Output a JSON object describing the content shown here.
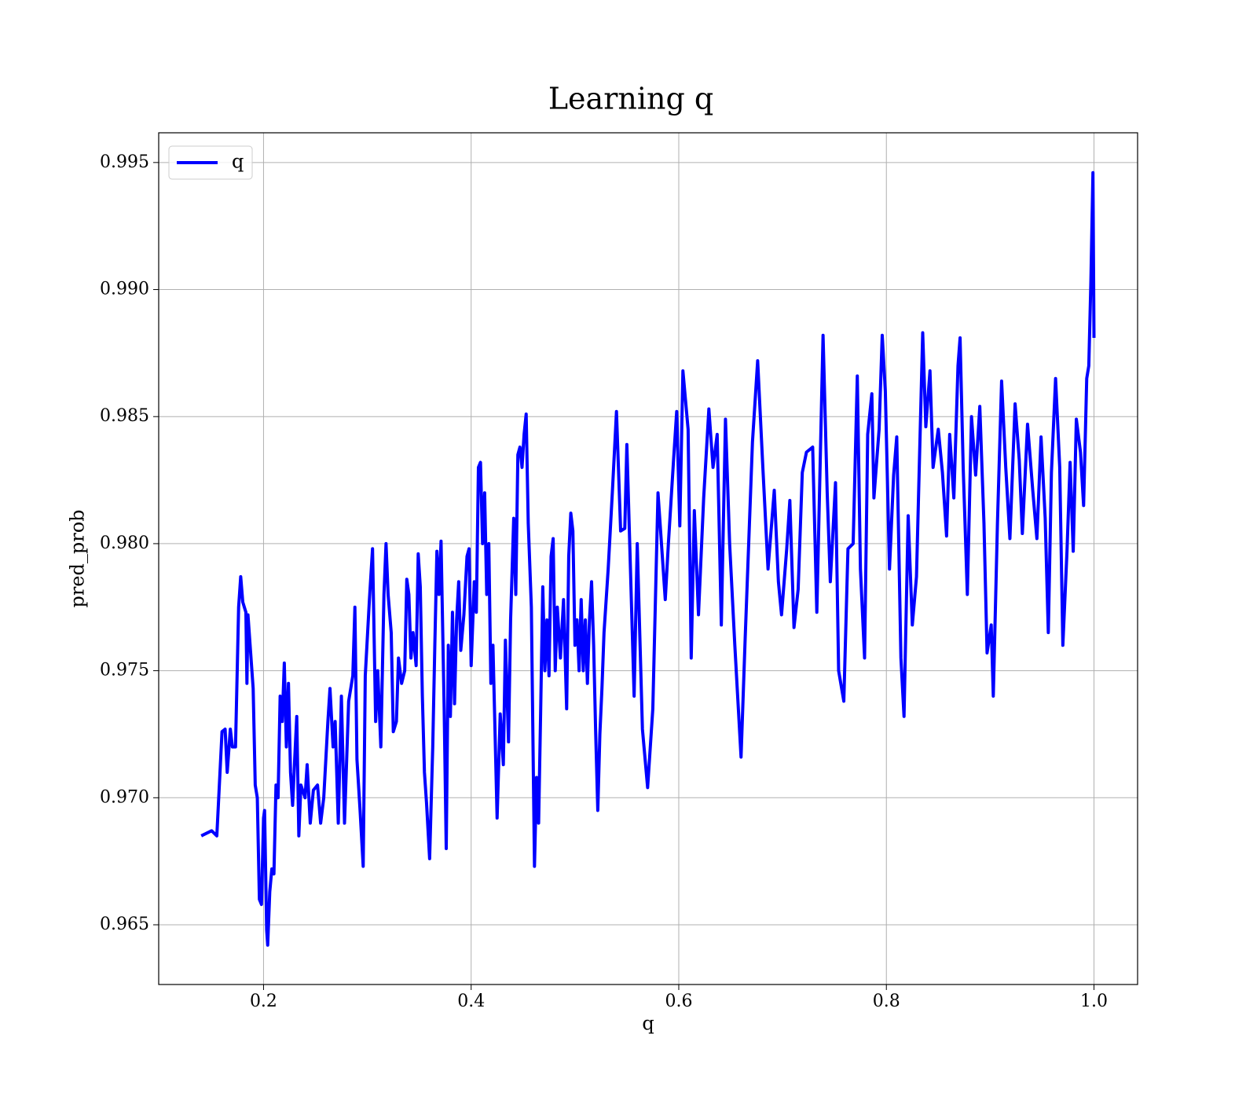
{
  "chart_data": {
    "type": "line",
    "title": "Learning q",
    "xlabel": "q",
    "ylabel": "pred_prob",
    "x": [
      0.14,
      0.15,
      0.155,
      0.16,
      0.163,
      0.165,
      0.168,
      0.17,
      0.173,
      0.176,
      0.178,
      0.18,
      0.183,
      0.184,
      0.185,
      0.19,
      0.192,
      0.194,
      0.196,
      0.198,
      0.2,
      0.201,
      0.203,
      0.204,
      0.206,
      0.208,
      0.21,
      0.212,
      0.214,
      0.216,
      0.218,
      0.22,
      0.222,
      0.224,
      0.226,
      0.228,
      0.23,
      0.232,
      0.234,
      0.236,
      0.24,
      0.242,
      0.245,
      0.248,
      0.252,
      0.255,
      0.258,
      0.262,
      0.264,
      0.267,
      0.269,
      0.272,
      0.275,
      0.278,
      0.282,
      0.286,
      0.288,
      0.29,
      0.293,
      0.296,
      0.298,
      0.302,
      0.305,
      0.308,
      0.31,
      0.313,
      0.316,
      0.318,
      0.32,
      0.323,
      0.325,
      0.328,
      0.33,
      0.333,
      0.336,
      0.338,
      0.34,
      0.342,
      0.344,
      0.347,
      0.349,
      0.351,
      0.353,
      0.355,
      0.357,
      0.36,
      0.363,
      0.365,
      0.367,
      0.369,
      0.371,
      0.374,
      0.376,
      0.378,
      0.38,
      0.382,
      0.384,
      0.386,
      0.388,
      0.39,
      0.393,
      0.396,
      0.398,
      0.4,
      0.403,
      0.405,
      0.407,
      0.409,
      0.411,
      0.413,
      0.415,
      0.417,
      0.419,
      0.421,
      0.425,
      0.428,
      0.431,
      0.433,
      0.436,
      0.438,
      0.441,
      0.443,
      0.445,
      0.447,
      0.449,
      0.451,
      0.453,
      0.455,
      0.458,
      0.461,
      0.463,
      0.465,
      0.467,
      0.469,
      0.471,
      0.473,
      0.475,
      0.477,
      0.479,
      0.481,
      0.483,
      0.486,
      0.489,
      0.492,
      0.494,
      0.496,
      0.498,
      0.5,
      0.502,
      0.504,
      0.506,
      0.508,
      0.51,
      0.512,
      0.514,
      0.516,
      0.518,
      0.52,
      0.522,
      0.524,
      0.526,
      0.528,
      0.532,
      0.536,
      0.54,
      0.544,
      0.548,
      0.55,
      0.557,
      0.56,
      0.565,
      0.57,
      0.575,
      0.58,
      0.587,
      0.59,
      0.595,
      0.598,
      0.601,
      0.604,
      0.609,
      0.612,
      0.615,
      0.619,
      0.624,
      0.629,
      0.633,
      0.637,
      0.641,
      0.645,
      0.649,
      0.654,
      0.66,
      0.664,
      0.671,
      0.676,
      0.681,
      0.686,
      0.692,
      0.696,
      0.699,
      0.704,
      0.707,
      0.711,
      0.715,
      0.719,
      0.723,
      0.729,
      0.733,
      0.739,
      0.743,
      0.746,
      0.751,
      0.754,
      0.759,
      0.763,
      0.768,
      0.772,
      0.775,
      0.779,
      0.782,
      0.786,
      0.788,
      0.793,
      0.796,
      0.799,
      0.803,
      0.807,
      0.81,
      0.814,
      0.817,
      0.821,
      0.825,
      0.829,
      0.835,
      0.838,
      0.842,
      0.845,
      0.85,
      0.854,
      0.858,
      0.861,
      0.865,
      0.869,
      0.871,
      0.874,
      0.878,
      0.882,
      0.886,
      0.89,
      0.894,
      0.897,
      0.901,
      0.903,
      0.907,
      0.911,
      0.915,
      0.919,
      0.924,
      0.928,
      0.931,
      0.936,
      0.941,
      0.945,
      0.949,
      0.953,
      0.956,
      0.959,
      0.963,
      0.967,
      0.97,
      0.974,
      0.977,
      0.98,
      0.983,
      0.987,
      0.99,
      0.993,
      0.995,
      0.997,
      0.999,
      1.0
    ],
    "series": [
      {
        "name": "q",
        "color": "#0000ff",
        "values": [
          0.9685,
          0.9687,
          0.9685,
          0.9726,
          0.9727,
          0.971,
          0.9727,
          0.972,
          0.972,
          0.9775,
          0.9787,
          0.9777,
          0.9773,
          0.9745,
          0.9772,
          0.9743,
          0.9705,
          0.97,
          0.966,
          0.9658,
          0.9692,
          0.9695,
          0.9648,
          0.9642,
          0.9663,
          0.9672,
          0.967,
          0.9705,
          0.97,
          0.974,
          0.973,
          0.9753,
          0.972,
          0.9745,
          0.971,
          0.9697,
          0.9715,
          0.9732,
          0.9685,
          0.9705,
          0.97,
          0.9713,
          0.969,
          0.9703,
          0.9705,
          0.969,
          0.97,
          0.973,
          0.9743,
          0.972,
          0.973,
          0.969,
          0.974,
          0.969,
          0.9738,
          0.9748,
          0.9775,
          0.9715,
          0.9695,
          0.9673,
          0.9748,
          0.9778,
          0.9798,
          0.973,
          0.975,
          0.972,
          0.978,
          0.98,
          0.978,
          0.9765,
          0.9726,
          0.973,
          0.9755,
          0.9745,
          0.975,
          0.9786,
          0.978,
          0.9755,
          0.9765,
          0.9752,
          0.9796,
          0.9783,
          0.974,
          0.971,
          0.9698,
          0.9676,
          0.972,
          0.976,
          0.9797,
          0.978,
          0.9801,
          0.9735,
          0.968,
          0.976,
          0.9732,
          0.9773,
          0.9737,
          0.977,
          0.9785,
          0.9758,
          0.9772,
          0.9795,
          0.9798,
          0.9752,
          0.9785,
          0.9773,
          0.983,
          0.9832,
          0.98,
          0.982,
          0.978,
          0.98,
          0.9745,
          0.976,
          0.9692,
          0.9733,
          0.9713,
          0.9762,
          0.9722,
          0.977,
          0.981,
          0.978,
          0.9835,
          0.9838,
          0.983,
          0.9843,
          0.9851,
          0.9808,
          0.9775,
          0.9673,
          0.9708,
          0.969,
          0.9735,
          0.9783,
          0.975,
          0.977,
          0.9748,
          0.9795,
          0.9802,
          0.975,
          0.9775,
          0.9755,
          0.9778,
          0.9735,
          0.9795,
          0.9812,
          0.9805,
          0.976,
          0.977,
          0.975,
          0.9778,
          0.975,
          0.977,
          0.9745,
          0.977,
          0.9785,
          0.976,
          0.9725,
          0.9695,
          0.9725,
          0.9743,
          0.9765,
          0.979,
          0.982,
          0.9852,
          0.9805,
          0.9806,
          0.9839,
          0.974,
          0.98,
          0.9727,
          0.9704,
          0.9735,
          0.982,
          0.9778,
          0.98,
          0.9833,
          0.9852,
          0.9807,
          0.9868,
          0.9845,
          0.9755,
          0.9813,
          0.9772,
          0.9818,
          0.9853,
          0.983,
          0.9843,
          0.9768,
          0.9849,
          0.98,
          0.976,
          0.9716,
          0.9763,
          0.984,
          0.9872,
          0.983,
          0.979,
          0.9821,
          0.9785,
          0.9772,
          0.9798,
          0.9817,
          0.9767,
          0.9782,
          0.9828,
          0.9836,
          0.9838,
          0.9773,
          0.9882,
          0.982,
          0.9785,
          0.9824,
          0.975,
          0.9738,
          0.9798,
          0.98,
          0.9866,
          0.979,
          0.9755,
          0.9843,
          0.9859,
          0.9818,
          0.9845,
          0.9882,
          0.986,
          0.979,
          0.9827,
          0.9842,
          0.9755,
          0.9732,
          0.9811,
          0.9768,
          0.9787,
          0.9883,
          0.9846,
          0.9868,
          0.983,
          0.9845,
          0.9828,
          0.9803,
          0.9843,
          0.9818,
          0.987,
          0.9881,
          0.983,
          0.978,
          0.985,
          0.9827,
          0.9854,
          0.9808,
          0.9757,
          0.9768,
          0.974,
          0.9808,
          0.9864,
          0.983,
          0.9802,
          0.9855,
          0.9833,
          0.9804,
          0.9847,
          0.9821,
          0.9802,
          0.9842,
          0.981,
          0.9765,
          0.9828,
          0.9865,
          0.983,
          0.976,
          0.9797,
          0.9832,
          0.9797,
          0.9849,
          0.9836,
          0.9815,
          0.9865,
          0.987,
          0.9903,
          0.9946,
          0.9881
        ]
      }
    ],
    "xlim": [
      0.099,
      1.042
    ],
    "ylim": [
      0.96265,
      0.99617
    ],
    "xticks": [
      0.2,
      0.4,
      0.6,
      0.8,
      {
        "value": 1,
        "label": "1.0"
      }
    ],
    "yticks": [
      0.965,
      {
        "value": 0.97,
        "label": "0.970"
      },
      0.975,
      {
        "value": 0.98,
        "label": "0.980"
      },
      0.985,
      {
        "value": 0.99,
        "label": "0.990"
      },
      0.995
    ],
    "grid": true,
    "legend": "upper left"
  }
}
